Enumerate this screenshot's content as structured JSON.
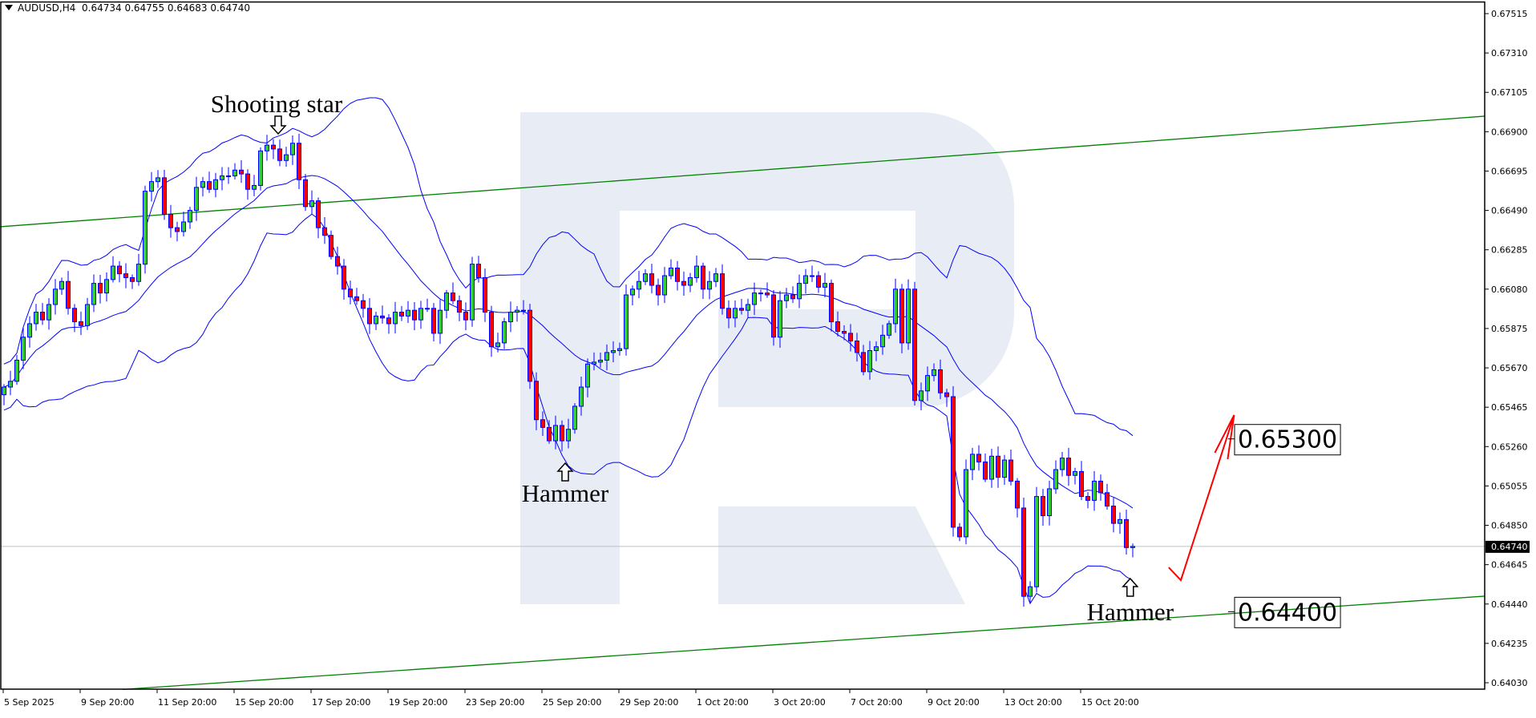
{
  "header": {
    "symbol": "AUDUSD,H4",
    "open": "0.64734",
    "high": "0.64755",
    "low": "0.64683",
    "close": "0.64740"
  },
  "chart_data": {
    "type": "candlestick",
    "symbol": "AUDUSD",
    "timeframe": "H4",
    "price_ticks": [
      "0.67515",
      "0.67310",
      "0.67105",
      "0.66900",
      "0.66695",
      "0.66490",
      "0.66285",
      "0.66080",
      "0.65875",
      "0.65670",
      "0.65465",
      "0.65260",
      "0.65055",
      "0.64850",
      "0.64645",
      "0.64440",
      "0.64235",
      "0.64030"
    ],
    "ylim": [
      0.6399,
      0.6754
    ],
    "x_ticks": [
      "5 Sep 2025",
      "9 Sep 20:00",
      "11 Sep 20:00",
      "15 Sep 20:00",
      "17 Sep 20:00",
      "19 Sep 20:00",
      "23 Sep 20:00",
      "25 Sep 20:00",
      "29 Sep 20:00",
      "1 Oct 20:00",
      "3 Oct 20:00",
      "7 Oct 20:00",
      "9 Oct 20:00",
      "13 Oct 20:00",
      "15 Oct 20:00"
    ],
    "bars_per_x_tick": 12,
    "current_price": "0.64740",
    "closes": [
      0.6557,
      0.656,
      0.6571,
      0.6583,
      0.659,
      0.6596,
      0.6592,
      0.66,
      0.6608,
      0.6612,
      0.6598,
      0.6591,
      0.6589,
      0.66,
      0.6611,
      0.6606,
      0.6613,
      0.662,
      0.6616,
      0.6614,
      0.6612,
      0.6621,
      0.6659,
      0.6664,
      0.6666,
      0.6647,
      0.664,
      0.6638,
      0.6643,
      0.6649,
      0.6661,
      0.6664,
      0.666,
      0.6665,
      0.6667,
      0.6667,
      0.667,
      0.6668,
      0.666,
      0.6662,
      0.668,
      0.6683,
      0.6681,
      0.6675,
      0.6678,
      0.6684,
      0.6665,
      0.6651,
      0.6654,
      0.664,
      0.6636,
      0.6625,
      0.662,
      0.6608,
      0.6604,
      0.6602,
      0.6598,
      0.659,
      0.6594,
      0.6593,
      0.659,
      0.6596,
      0.6594,
      0.6597,
      0.6592,
      0.6598,
      0.6598,
      0.6585,
      0.6597,
      0.6606,
      0.6602,
      0.6596,
      0.6592,
      0.6621,
      0.6614,
      0.6596,
      0.6578,
      0.658,
      0.6591,
      0.6596,
      0.6597,
      0.6597,
      0.656,
      0.654,
      0.6536,
      0.6529,
      0.6537,
      0.6529,
      0.6535,
      0.6547,
      0.6557,
      0.6569,
      0.657,
      0.6571,
      0.6575,
      0.6576,
      0.6577,
      0.6605,
      0.6608,
      0.6612,
      0.6616,
      0.661,
      0.6605,
      0.6615,
      0.6619,
      0.6612,
      0.661,
      0.6614,
      0.662,
      0.6608,
      0.6612,
      0.6616,
      0.6598,
      0.6593,
      0.6598,
      0.6597,
      0.66,
      0.6606,
      0.6606,
      0.6605,
      0.6583,
      0.6602,
      0.6605,
      0.6603,
      0.6611,
      0.6615,
      0.6615,
      0.6609,
      0.6611,
      0.6591,
      0.6586,
      0.6585,
      0.6581,
      0.6575,
      0.6565,
      0.6576,
      0.6578,
      0.6584,
      0.659,
      0.6608,
      0.658,
      0.6608,
      0.655,
      0.6555,
      0.6563,
      0.6566,
      0.6554,
      0.6552,
      0.6484,
      0.6479,
      0.6514,
      0.6522,
      0.6518,
      0.6509,
      0.6521,
      0.651,
      0.6519,
      0.6508,
      0.6494,
      0.6448,
      0.6453,
      0.65,
      0.649,
      0.6504,
      0.6514,
      0.652,
      0.6511,
      0.6513,
      0.65,
      0.6498,
      0.6508,
      0.6502,
      0.6495,
      0.6486,
      0.6488,
      0.64734,
      0.6474
    ],
    "last_candle": {
      "open": 0.64734,
      "high": 0.64755,
      "low": 0.64683,
      "close": 0.6474
    },
    "indicators": [
      {
        "type": "bollinger_bands",
        "color": "#0000ff"
      }
    ],
    "trendlines": [
      {
        "color": "#008000",
        "from": {
          "bar": -0.6,
          "price": 0.66405
        },
        "to": {
          "bar": 230.9,
          "price": 0.66981
        }
      },
      {
        "color": "#008000",
        "from": {
          "bar": 18.5,
          "price": 0.63995
        },
        "to": {
          "bar": 230.9,
          "price": 0.64481
        }
      }
    ],
    "forecast_arrow": {
      "color": "#ff0000",
      "points": [
        {
          "bar": 181.6,
          "price": 0.64631
        },
        {
          "bar": 183.5,
          "price": 0.64564
        },
        {
          "bar": 191.8,
          "price": 0.65424
        }
      ]
    },
    "levels": [
      {
        "label": "0.65300",
        "price": 0.653
      },
      {
        "label": "0.64400",
        "price": 0.644
      }
    ],
    "annotations": [
      {
        "text": "Shooting star",
        "bar": 42.5,
        "arrow": "down"
      },
      {
        "text": "Hammer",
        "bar": 87.5,
        "arrow": "up"
      },
      {
        "text": "Hammer",
        "bar": 175.6,
        "arrow": "up"
      }
    ],
    "colors": {
      "bull": "#32cd32",
      "bear": "#ff0000",
      "outline": "#0000ff",
      "watermark": "#e8edf5",
      "current_line": "#c0c0c0"
    }
  }
}
